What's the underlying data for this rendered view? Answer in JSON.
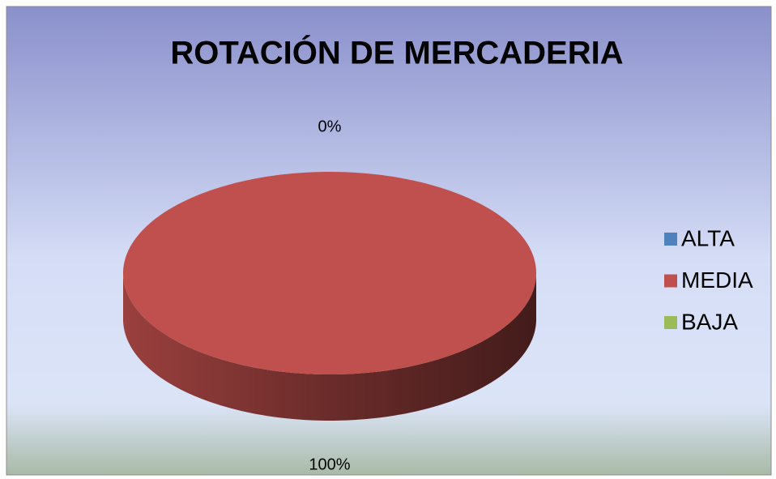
{
  "chart_data": {
    "type": "pie",
    "title": "ROTACIÓN DE MERCADERIA",
    "categories": [
      "ALTA",
      "MEDIA",
      "BAJA"
    ],
    "values": [
      0,
      100,
      0
    ],
    "value_labels": [
      "0%",
      "100%",
      null
    ],
    "colors": [
      "#4f81bd",
      "#c0504d",
      "#9bbb59"
    ],
    "legend": "right"
  }
}
